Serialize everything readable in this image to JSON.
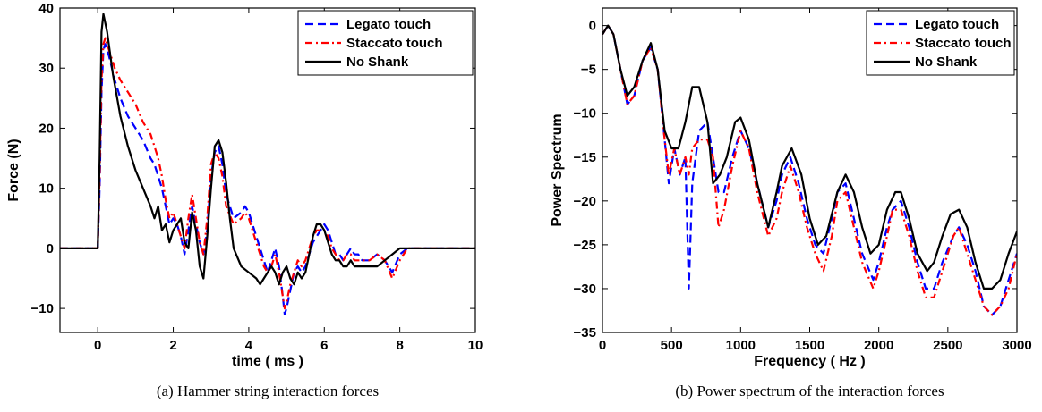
{
  "chart_data": [
    {
      "type": "line",
      "caption": "(a)  Hammer string interaction forces",
      "xlabel": "time ( ms )",
      "ylabel": "Force (N)",
      "xlim": [
        -1,
        10
      ],
      "ylim": [
        -14,
        40
      ],
      "xticks": [
        0,
        2,
        4,
        6,
        8,
        10
      ],
      "yticks": [
        -10,
        0,
        10,
        20,
        30,
        40
      ],
      "grid": false,
      "legend_position": "top-right",
      "series": [
        {
          "name": "Legato touch",
          "color": "#0000ff",
          "dash": "dashed",
          "x": [
            -1,
            0,
            0.05,
            0.1,
            0.15,
            0.2,
            0.3,
            0.45,
            0.6,
            0.8,
            1.0,
            1.2,
            1.4,
            1.5,
            1.6,
            1.7,
            1.8,
            1.9,
            2.0,
            2.1,
            2.2,
            2.3,
            2.4,
            2.5,
            2.6,
            2.7,
            2.8,
            2.9,
            3.0,
            3.1,
            3.2,
            3.3,
            3.4,
            3.6,
            3.8,
            3.9,
            4.0,
            4.1,
            4.2,
            4.3,
            4.4,
            4.5,
            4.6,
            4.7,
            4.8,
            4.9,
            4.95,
            5.0,
            5.1,
            5.2,
            5.3,
            5.4,
            5.5,
            5.6,
            5.7,
            5.8,
            5.9,
            6.0,
            6.1,
            6.2,
            6.3,
            6.4,
            6.5,
            6.6,
            6.7,
            6.8,
            6.9,
            7.0,
            7.2,
            7.4,
            7.6,
            7.8,
            8.0,
            8.2,
            9,
            10
          ],
          "y": [
            0,
            0,
            10,
            26,
            33,
            34,
            32,
            28,
            25,
            22,
            20,
            18,
            15,
            14,
            12,
            10,
            7,
            4,
            5,
            4,
            2,
            -1,
            3,
            7,
            4,
            1,
            -1,
            3,
            12,
            16,
            17,
            14,
            9,
            5,
            6,
            7,
            6,
            4,
            2,
            0,
            -2,
            -4,
            -2,
            0,
            -3,
            -8,
            -11,
            -10,
            -7,
            -4,
            -3,
            -4,
            -3,
            -1,
            1,
            2,
            3,
            4,
            3,
            1,
            -1,
            -1,
            -2,
            -1,
            0,
            -1,
            -1,
            -2,
            -2,
            -1,
            -2,
            -4,
            -1,
            0,
            0,
            0
          ]
        },
        {
          "name": "Staccato touch",
          "color": "#ff0000",
          "dash": "dashdot",
          "x": [
            -1,
            0,
            0.05,
            0.1,
            0.15,
            0.2,
            0.3,
            0.45,
            0.6,
            0.8,
            1.0,
            1.2,
            1.4,
            1.5,
            1.6,
            1.7,
            1.8,
            1.9,
            2.0,
            2.1,
            2.2,
            2.3,
            2.4,
            2.5,
            2.6,
            2.7,
            2.8,
            2.9,
            3.0,
            3.1,
            3.2,
            3.3,
            3.4,
            3.6,
            3.8,
            3.9,
            4.0,
            4.1,
            4.2,
            4.3,
            4.4,
            4.5,
            4.6,
            4.7,
            4.8,
            4.9,
            4.95,
            5.0,
            5.1,
            5.2,
            5.3,
            5.4,
            5.5,
            5.6,
            5.7,
            5.8,
            5.9,
            6.0,
            6.1,
            6.2,
            6.3,
            6.4,
            6.5,
            6.6,
            6.7,
            6.8,
            6.9,
            7.0,
            7.2,
            7.4,
            7.6,
            7.8,
            8.0,
            8.2,
            9,
            10
          ],
          "y": [
            0,
            0,
            12,
            28,
            34,
            35,
            33,
            30,
            28,
            26,
            24,
            21,
            19,
            17,
            15,
            12,
            8,
            5,
            6,
            4,
            2,
            0,
            5,
            9,
            5,
            1,
            -1,
            5,
            14,
            16,
            15,
            12,
            7,
            4,
            5,
            6,
            5,
            3,
            1,
            -1,
            -3,
            -4,
            -3,
            -1,
            -4,
            -8,
            -10,
            -9,
            -6,
            -4,
            -2,
            -3,
            -2,
            0,
            2,
            3,
            3,
            3,
            2,
            0,
            -1,
            -2,
            -2,
            -1,
            -1,
            -2,
            -2,
            -2,
            -2,
            -1,
            -2,
            -5,
            -2,
            0,
            0,
            0
          ]
        },
        {
          "name": "No Shank",
          "color": "#000000",
          "dash": "solid",
          "x": [
            -1,
            0,
            0.05,
            0.1,
            0.15,
            0.25,
            0.4,
            0.6,
            0.8,
            1.0,
            1.2,
            1.4,
            1.5,
            1.6,
            1.7,
            1.8,
            1.9,
            2.0,
            2.1,
            2.2,
            2.3,
            2.4,
            2.5,
            2.6,
            2.7,
            2.8,
            2.9,
            3.0,
            3.1,
            3.2,
            3.3,
            3.4,
            3.5,
            3.6,
            3.8,
            4.0,
            4.2,
            4.3,
            4.4,
            4.5,
            4.6,
            4.7,
            4.8,
            4.9,
            5.0,
            5.1,
            5.2,
            5.3,
            5.4,
            5.5,
            5.6,
            5.7,
            5.8,
            5.9,
            6.0,
            6.1,
            6.2,
            6.3,
            6.4,
            6.5,
            6.6,
            6.7,
            6.8,
            6.9,
            7.0,
            7.2,
            7.4,
            7.6,
            7.8,
            8.0,
            8.2,
            9,
            10
          ],
          "y": [
            0,
            0,
            15,
            36,
            39,
            36,
            29,
            22,
            17,
            13,
            10,
            7,
            5,
            7,
            3,
            4,
            1,
            3,
            4,
            5,
            1,
            0,
            6,
            3,
            -3,
            -5,
            2,
            10,
            17,
            18,
            16,
            11,
            5,
            0,
            -3,
            -4,
            -5,
            -6,
            -5,
            -4,
            -3,
            -4,
            -6,
            -4,
            -3,
            -5,
            -6,
            -4,
            -5,
            -4,
            -1,
            2,
            4,
            4,
            3,
            1,
            -1,
            -2,
            -2,
            -3,
            -3,
            -2,
            -3,
            -3,
            -3,
            -3,
            -3,
            -2,
            -1,
            0,
            0,
            0,
            0
          ]
        }
      ]
    },
    {
      "type": "line",
      "caption": "(b)  Power spectrum of the interaction forces",
      "xlabel": "Frequency ( Hz )",
      "ylabel": "Power Spectrum",
      "xlim": [
        0,
        3000
      ],
      "ylim": [
        -35,
        2
      ],
      "xticks": [
        0,
        500,
        1000,
        1500,
        2000,
        2500,
        3000
      ],
      "yticks": [
        -35,
        -30,
        -25,
        -20,
        -15,
        -10,
        -5,
        0
      ],
      "grid": false,
      "legend_position": "top-right",
      "series": [
        {
          "name": "Legato touch",
          "color": "#0000ff",
          "dash": "dashed",
          "x": [
            0,
            40,
            80,
            130,
            180,
            230,
            290,
            350,
            400,
            450,
            480,
            520,
            560,
            600,
            625,
            650,
            700,
            760,
            800,
            840,
            880,
            940,
            1000,
            1060,
            1120,
            1200,
            1260,
            1300,
            1360,
            1420,
            1480,
            1540,
            1600,
            1660,
            1700,
            1760,
            1820,
            1880,
            1960,
            2000,
            2060,
            2100,
            2160,
            2220,
            2280,
            2340,
            2400,
            2460,
            2540,
            2580,
            2640,
            2700,
            2760,
            2820,
            2880,
            2940,
            3000
          ],
          "x_note": "",
          "y": [
            -1,
            0,
            -1,
            -5,
            -9,
            -8,
            -4,
            -2.5,
            -5,
            -13,
            -18,
            -14,
            -17,
            -15,
            -30,
            -18,
            -12,
            -11,
            -15,
            -19,
            -19,
            -15,
            -12,
            -14,
            -18,
            -23,
            -20,
            -17,
            -15,
            -18,
            -22,
            -25,
            -26,
            -22,
            -19,
            -18,
            -22,
            -26,
            -29,
            -27,
            -23,
            -21,
            -20,
            -23,
            -27,
            -30,
            -30,
            -27,
            -24,
            -23,
            -25,
            -28,
            -32,
            -33,
            -32,
            -29,
            -26
          ]
        },
        {
          "name": "Staccato touch",
          "color": "#ff0000",
          "dash": "dashdot",
          "x": [
            0,
            40,
            80,
            130,
            180,
            230,
            290,
            350,
            400,
            450,
            480,
            520,
            560,
            600,
            625,
            650,
            700,
            760,
            800,
            840,
            880,
            940,
            1000,
            1060,
            1120,
            1200,
            1260,
            1300,
            1360,
            1420,
            1480,
            1540,
            1600,
            1660,
            1700,
            1760,
            1820,
            1880,
            1960,
            2000,
            2060,
            2100,
            2160,
            2220,
            2280,
            2340,
            2400,
            2460,
            2540,
            2580,
            2640,
            2700,
            2760,
            2820,
            2880,
            2940,
            3000
          ],
          "y": [
            -1,
            0,
            -1,
            -5,
            -9,
            -8,
            -4,
            -2.5,
            -5,
            -13,
            -17,
            -14,
            -17,
            -15,
            -17,
            -14,
            -13,
            -13,
            -15,
            -23,
            -21,
            -16,
            -12,
            -14,
            -19,
            -24,
            -22,
            -19,
            -16,
            -19,
            -23,
            -26,
            -28,
            -24,
            -20,
            -19,
            -23,
            -27,
            -30,
            -28,
            -24,
            -21,
            -21,
            -24,
            -28,
            -31,
            -31,
            -28,
            -24,
            -23,
            -26,
            -29,
            -32,
            -33,
            -32,
            -30,
            -26
          ]
        },
        {
          "name": "No Shank",
          "color": "#000000",
          "dash": "solid",
          "x": [
            0,
            40,
            80,
            130,
            180,
            230,
            290,
            350,
            400,
            450,
            500,
            550,
            600,
            650,
            700,
            760,
            800,
            850,
            900,
            960,
            1000,
            1060,
            1120,
            1200,
            1260,
            1300,
            1370,
            1440,
            1500,
            1560,
            1620,
            1700,
            1760,
            1820,
            1880,
            1940,
            2000,
            2060,
            2120,
            2160,
            2220,
            2280,
            2350,
            2400,
            2460,
            2520,
            2580,
            2640,
            2700,
            2760,
            2820,
            2880,
            2940,
            3000
          ],
          "y": [
            -1,
            0,
            -1,
            -5,
            -8,
            -7,
            -4,
            -2,
            -5,
            -12,
            -14,
            -14,
            -11,
            -7,
            -7,
            -11,
            -18,
            -17,
            -15,
            -11,
            -10.5,
            -13,
            -18,
            -23,
            -19,
            -16,
            -14,
            -17,
            -22,
            -25,
            -24,
            -19,
            -17,
            -19,
            -23,
            -26,
            -25,
            -21,
            -19,
            -19,
            -22,
            -26,
            -28,
            -27,
            -24,
            -21.5,
            -21,
            -23,
            -27,
            -30,
            -30,
            -29,
            -26,
            -23.5
          ]
        }
      ]
    }
  ]
}
